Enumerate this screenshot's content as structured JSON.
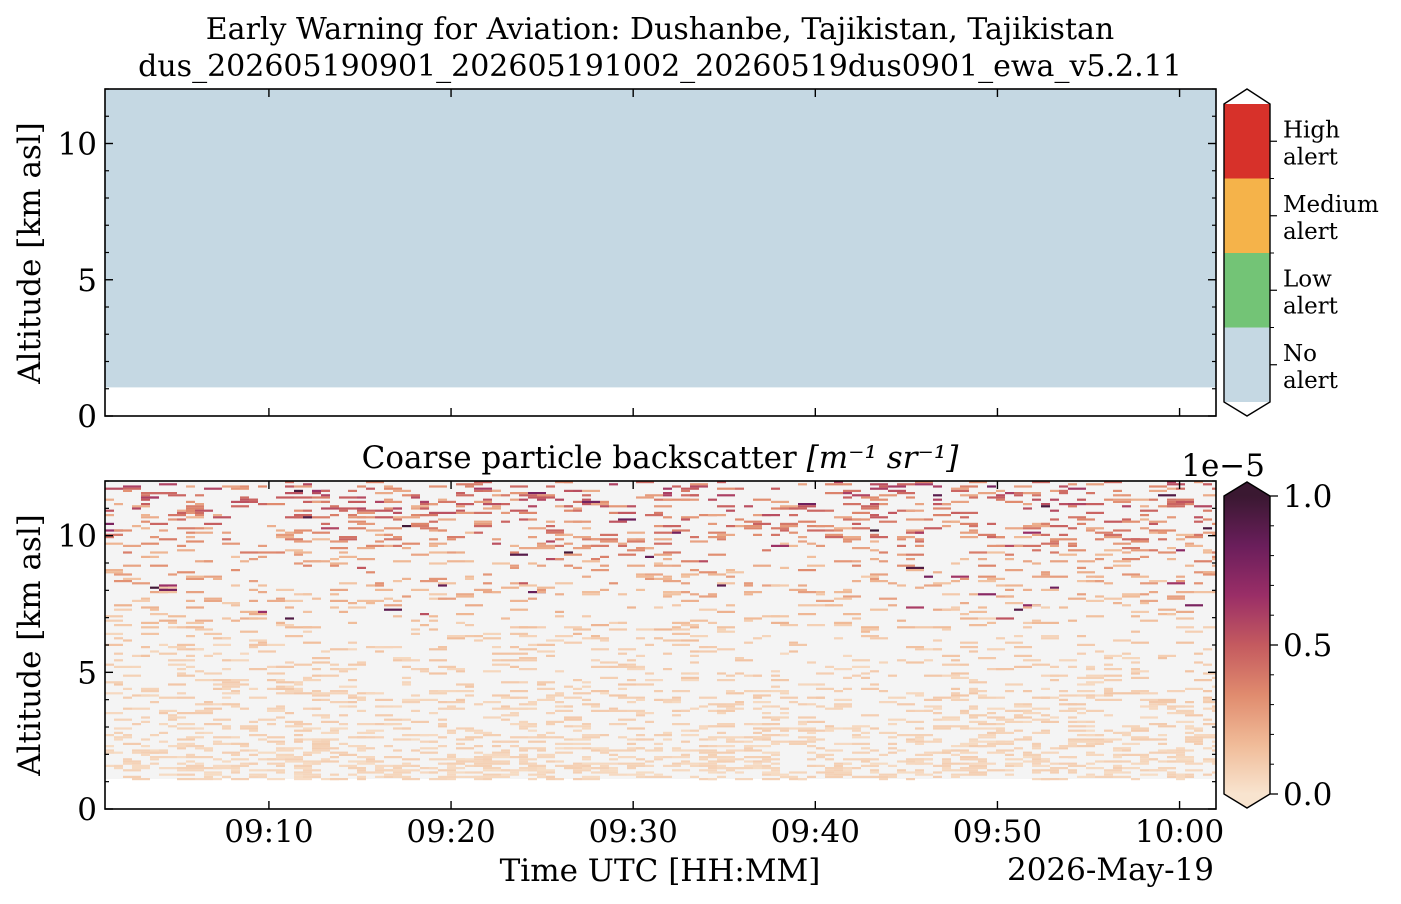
{
  "figure": {
    "title_line1": "Early Warning for Aviation: Dushanbe, Tajikistan, Tajikistan",
    "title_line2": "dus_202605190901_202605191002_20260519dus0901_ewa_v5.2.11"
  },
  "chart_data": [
    {
      "type": "heatmap",
      "title": "",
      "xlabel": "",
      "ylabel": "Altitude [km asl]",
      "xlim": [
        "09:01",
        "10:02"
      ],
      "ylim": [
        0,
        12
      ],
      "yticks": [
        0,
        5,
        10
      ],
      "data_bottom_km": 1.05,
      "data_top_km": 12.0,
      "value_everywhere": "No alert",
      "colorbar": {
        "categories": [
          {
            "label_line1": "High",
            "label_line2": "alert",
            "color": "#d7312a"
          },
          {
            "label_line1": "Medium",
            "label_line2": "alert",
            "color": "#f5b34a"
          },
          {
            "label_line1": "Low",
            "label_line2": "alert",
            "color": "#73c476"
          },
          {
            "label_line1": "No",
            "label_line2": "alert",
            "color": "#c5d8e3"
          }
        ]
      }
    },
    {
      "type": "heatmap",
      "title_prefix": "Coarse particle backscatter ",
      "title_units": "[m⁻¹ sr⁻¹]",
      "xlabel": "Time UTC [HH:MM]",
      "date_label": "2026-May-19",
      "ylabel": "Altitude [km asl]",
      "xlim": [
        "09:01",
        "10:02"
      ],
      "xticks": [
        "09:10",
        "09:20",
        "09:30",
        "09:40",
        "09:50",
        "10:00"
      ],
      "ylim": [
        0,
        12
      ],
      "yticks": [
        0,
        5,
        10
      ],
      "data_bottom_km": 1.1,
      "data_top_km": 12.0,
      "background_color": "#f4f4f4",
      "colorbar": {
        "min": 0.0,
        "max": 1.0,
        "scale_label": "1e−5",
        "ticks": [
          {
            "value": 0.0,
            "label": "0.0"
          },
          {
            "value": 0.5,
            "label": "0.5"
          },
          {
            "value": 1.0,
            "label": "1.0"
          }
        ],
        "colormap": [
          "#f8e4cf",
          "#f0bb98",
          "#e08b6e",
          "#c45a5f",
          "#9a2e67",
          "#6a1e5b",
          "#3a1831"
        ]
      },
      "backscatter_profile_km": [
        {
          "altitude_km": 1.5,
          "typical_value": 0.05,
          "coverage": 0.6
        },
        {
          "altitude_km": 3.0,
          "typical_value": 0.06,
          "coverage": 0.35
        },
        {
          "altitude_km": 6.0,
          "typical_value": 0.08,
          "coverage": 0.15
        },
        {
          "altitude_km": 9.0,
          "typical_value": 0.2,
          "coverage": 0.2
        },
        {
          "altitude_km": 11.5,
          "typical_value": 0.35,
          "coverage": 0.3
        }
      ]
    }
  ]
}
